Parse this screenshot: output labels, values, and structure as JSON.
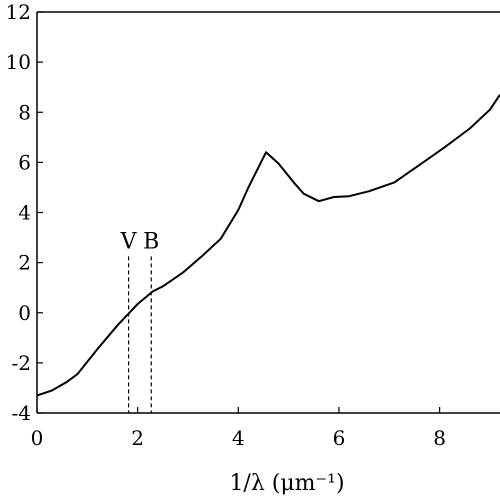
{
  "chart_data": {
    "type": "line",
    "title": "",
    "xlabel": "1/λ (μm⁻¹)",
    "ylabel": "",
    "xlim": [
      0,
      9.2
    ],
    "ylim": [
      -4,
      12
    ],
    "xticks": [
      0,
      2,
      4,
      6,
      8
    ],
    "yticks": [
      -4,
      -2,
      0,
      2,
      4,
      6,
      8,
      10,
      12
    ],
    "grid": false,
    "series": [
      {
        "color": "#000000",
        "x": [
          0,
          0.3,
          0.6,
          0.8,
          1.2,
          1.6,
          2.0,
          2.3,
          2.5,
          2.9,
          3.3,
          3.65,
          4.0,
          4.2,
          4.55,
          4.8,
          5.1,
          5.3,
          5.6,
          5.9,
          6.2,
          6.6,
          7.1,
          7.6,
          8.1,
          8.6,
          9.0,
          9.2
        ],
        "y": [
          -3.3,
          -3.1,
          -2.75,
          -2.45,
          -1.45,
          -0.5,
          0.35,
          0.85,
          1.05,
          1.6,
          2.3,
          2.95,
          4.1,
          5.0,
          6.4,
          5.95,
          5.2,
          4.75,
          4.45,
          4.62,
          4.65,
          4.85,
          5.2,
          5.9,
          6.6,
          7.35,
          8.1,
          8.7
        ]
      }
    ],
    "markers": [
      {
        "label": "V",
        "x": 1.82,
        "y_top": 2.25
      },
      {
        "label": "B",
        "x": 2.27,
        "y_top": 2.25
      }
    ]
  }
}
